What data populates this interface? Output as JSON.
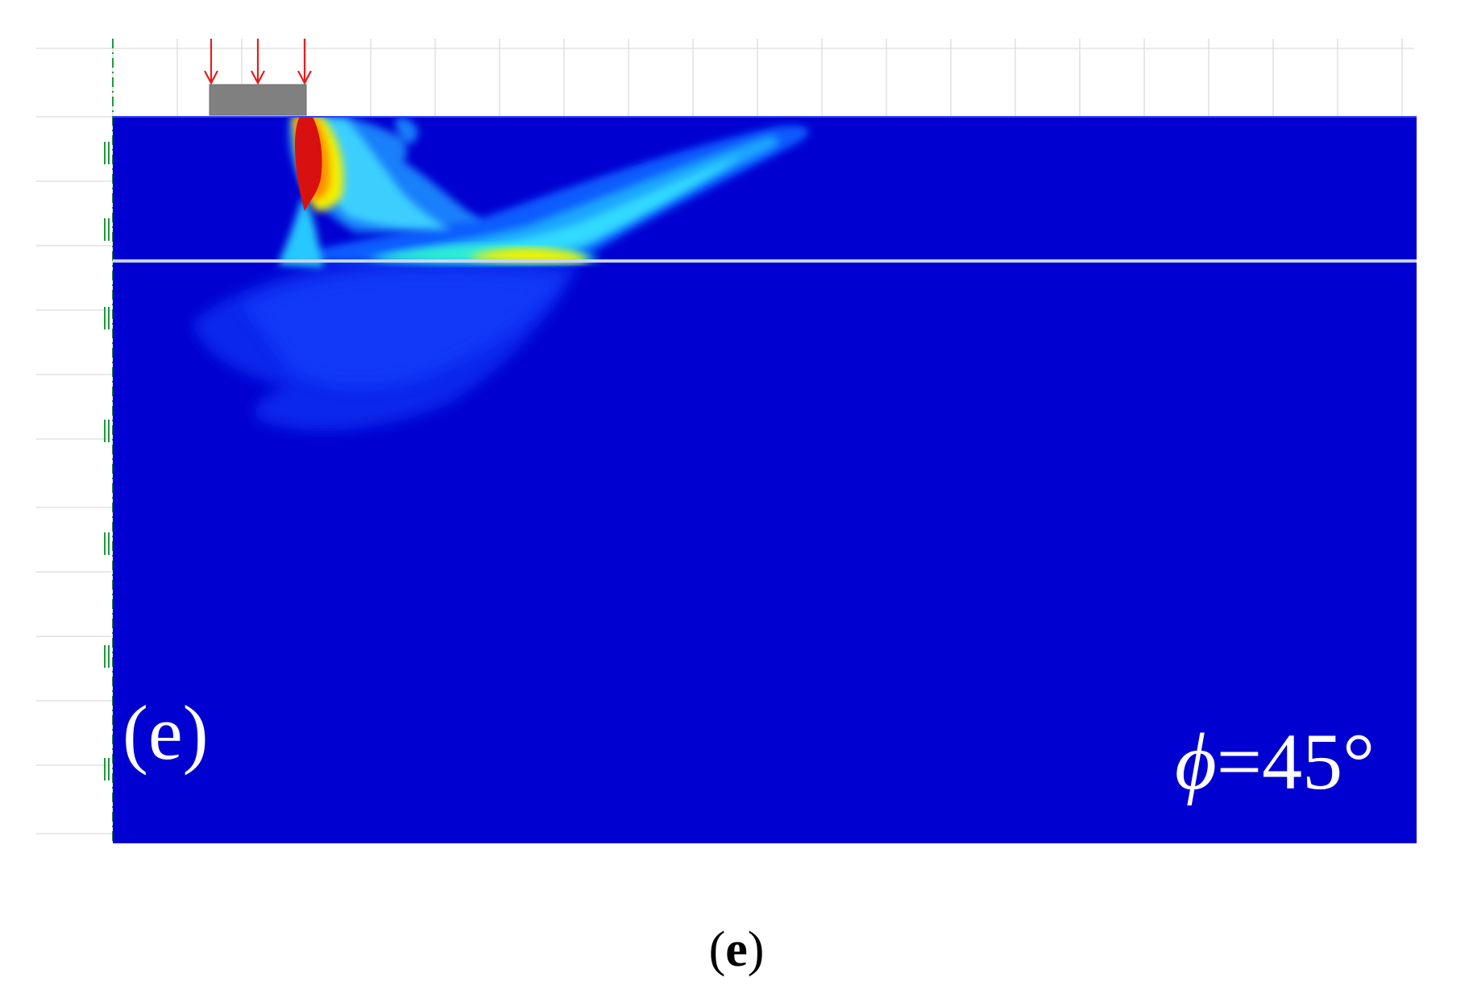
{
  "figure": {
    "panel_label": "(e)",
    "angle_symbol": "ϕ",
    "angle_value": "=45°",
    "caption_open": "(",
    "caption_letter": "e",
    "caption_close": ")"
  },
  "colors": {
    "background_field": "#0000d0",
    "footing": "#808080",
    "load_arrow": "#e0201e",
    "layer_interface": "#c8d2f0",
    "symmetry_axis": "#1f9a3a",
    "grid": "#dcdcdc"
  },
  "load": {
    "arrow_count": 3
  }
}
